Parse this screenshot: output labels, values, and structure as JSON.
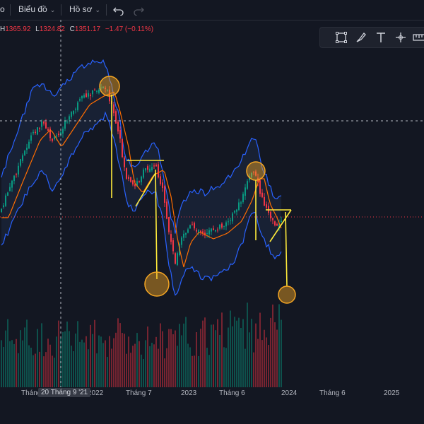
{
  "toolbar": {
    "partial_label": "o",
    "chart_menu": "Biểu đồ",
    "profile_menu": "Hồ sơ"
  },
  "ohlc": {
    "h_key": "H",
    "h_val": "1365.92",
    "l_key": "L",
    "l_val": "1324.82",
    "c_key": "C",
    "c_val": "1351.17",
    "change": "−1.47 (−0.11%)"
  },
  "drawing_tools": [
    "rectangle-select-icon",
    "brush-icon",
    "text-tool-icon",
    "measure-icon",
    "ruler-icon"
  ],
  "colors": {
    "background": "#131722",
    "up_candle": "#089981",
    "down_candle": "#f23645",
    "bollinger_band": "#2962ff",
    "bollinger_fill": "#1e2a44",
    "moving_average": "#ff6d00",
    "annotation": "#ffeb3b",
    "highlight_circle": "#f5a623"
  },
  "xaxis": {
    "ticks": [
      "Tháng",
      "2022",
      "Tháng 7",
      "2023",
      "Tháng 6",
      "2024",
      "Tháng 6",
      "2025"
    ],
    "crosshair_date": "20 Tháng 9 '21"
  },
  "chart_data": {
    "type": "candlestick",
    "overlays": [
      "bollinger_bands",
      "moving_average"
    ],
    "volume_histogram": true,
    "last_bar": {
      "high": 1365.92,
      "low": 1324.82,
      "close": 1351.17,
      "change": -1.47,
      "change_pct": -0.11
    },
    "annotations": [
      "circle-at-peak-2021",
      "drop-projection-2022",
      "circle-target-2022",
      "circle-at-peak-2023",
      "drop-projection-2024",
      "circle-target-2024"
    ]
  }
}
